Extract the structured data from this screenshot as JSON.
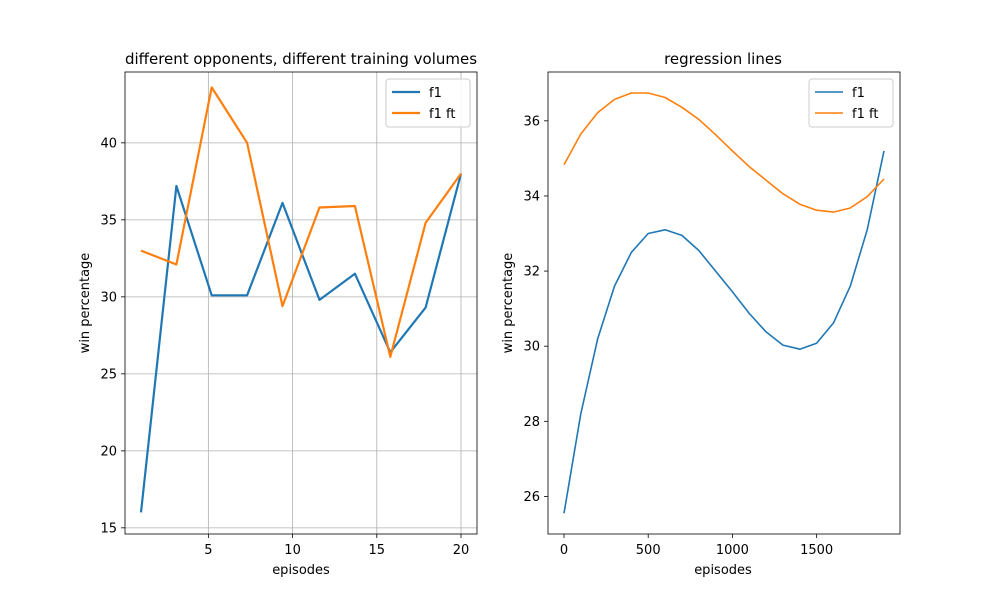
{
  "chart_data": [
    {
      "type": "line",
      "title": "different opponents, different training volumes",
      "xlabel": "episodes",
      "ylabel": "win percentage",
      "xlim": [
        0.05,
        20.95
      ],
      "ylim": [
        14.6,
        44.6
      ],
      "xticks": [
        5,
        10,
        15,
        20
      ],
      "yticks": [
        15,
        20,
        25,
        30,
        35,
        40
      ],
      "grid": true,
      "legend": "top-right",
      "series": [
        {
          "name": "f1",
          "color": "#1f77b4",
          "x": [
            1,
            3.1,
            5.2,
            7.3,
            9.4,
            11.6,
            13.7,
            15.8,
            17.9,
            20
          ],
          "values": [
            16.0,
            37.2,
            30.1,
            30.1,
            36.1,
            29.8,
            31.5,
            26.4,
            29.3,
            38.0
          ]
        },
        {
          "name": "f1 ft",
          "color": "#ff7f0e",
          "x": [
            1,
            3.1,
            5.2,
            7.3,
            9.4,
            11.6,
            13.7,
            15.8,
            17.9,
            20
          ],
          "values": [
            33.0,
            32.1,
            43.6,
            40.0,
            29.4,
            35.8,
            35.9,
            26.1,
            34.8,
            38.0
          ]
        }
      ]
    },
    {
      "type": "line",
      "title": "regression lines",
      "xlabel": "episodes",
      "ylabel": "win percentage",
      "xlim": [
        -95,
        1995
      ],
      "ylim": [
        25.0,
        37.3
      ],
      "xticks": [
        0,
        500,
        1000,
        1500
      ],
      "yticks": [
        26,
        28,
        30,
        32,
        34,
        36
      ],
      "grid": false,
      "legend": "top-right",
      "series": [
        {
          "name": "f1",
          "color": "#1f77b4",
          "x": [
            0,
            100,
            200,
            300,
            400,
            500,
            600,
            700,
            800,
            900,
            1000,
            1100,
            1200,
            1300,
            1400,
            1500,
            1600,
            1700,
            1800,
            1900
          ],
          "values": [
            25.55,
            28.2,
            30.2,
            31.6,
            32.5,
            33.0,
            33.1,
            32.95,
            32.55,
            32.0,
            31.45,
            30.87,
            30.38,
            30.03,
            29.92,
            30.08,
            30.62,
            31.6,
            33.1,
            35.2
          ]
        },
        {
          "name": "f1 ft",
          "color": "#ff7f0e",
          "x": [
            0,
            100,
            200,
            300,
            400,
            500,
            600,
            700,
            800,
            900,
            1000,
            1100,
            1200,
            1300,
            1400,
            1500,
            1600,
            1700,
            1800,
            1900
          ],
          "values": [
            34.83,
            35.65,
            36.22,
            36.57,
            36.74,
            36.74,
            36.62,
            36.36,
            36.04,
            35.63,
            35.2,
            34.78,
            34.42,
            34.06,
            33.78,
            33.62,
            33.57,
            33.68,
            33.98,
            34.45
          ]
        }
      ]
    }
  ]
}
